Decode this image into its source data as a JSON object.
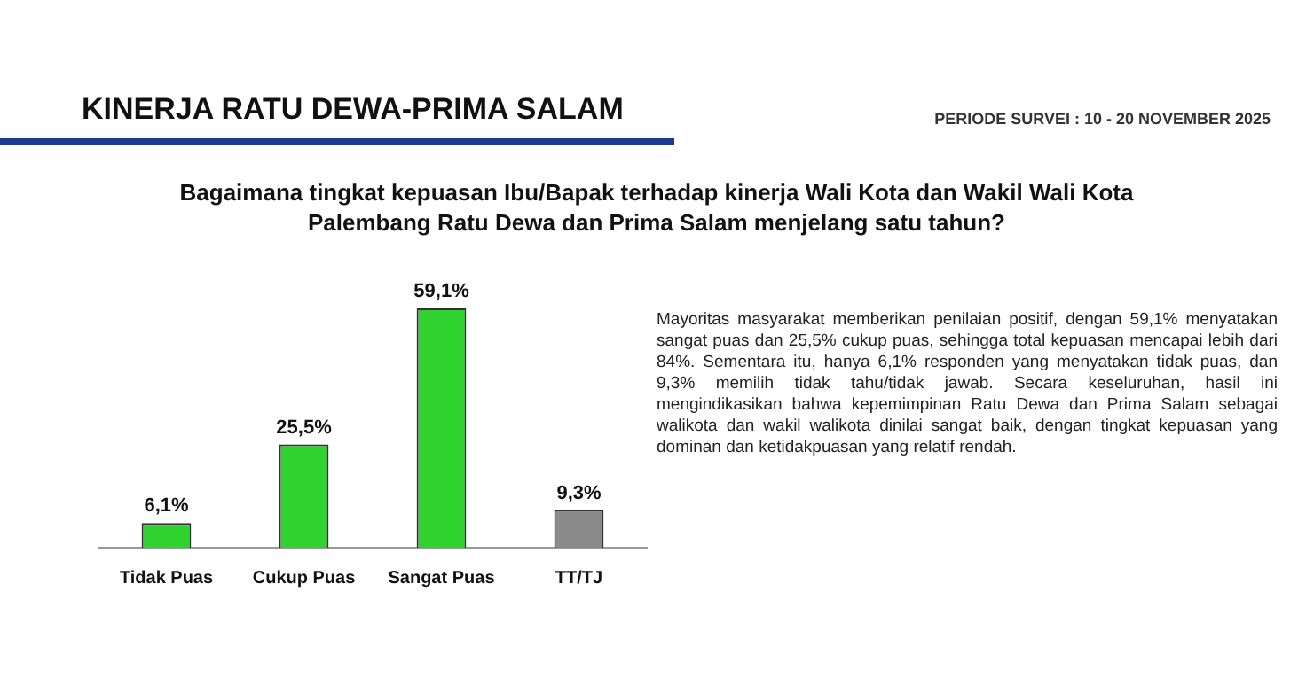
{
  "chart_data": {
    "type": "bar",
    "title": "KINERJA RATU DEWA-PRIMA SALAM",
    "subtitle": "Bagaimana tingkat kepuasan Ibu/Bapak terhadap kinerja Wali Kota dan Wakil Wali Kota Palembang Ratu Dewa dan Prima Salam menjelang satu tahun?",
    "categories": [
      "Tidak Puas",
      "Cukup Puas",
      "Sangat Puas",
      "TT/TJ"
    ],
    "values": [
      6.1,
      25.5,
      59.1,
      9.3
    ],
    "colors": [
      "#2fd22f",
      "#2fd22f",
      "#2fd22f",
      "#8a8a8a"
    ],
    "value_labels": [
      "6,1%",
      "25,5%",
      "59,1%",
      "9,3%"
    ],
    "annotations": [
      "PERIODE SURVEI : 10 - 20 NOVEMBER 2025",
      "Mayoritas masyarakat memberikan penilaian positif, dengan 59,1% menyatakan sangat puas dan 25,5% cukup puas, sehingga total kepuasan mencapai lebih dari 84%. Sementara itu, hanya 6,1% responden yang menyatakan tidak puas, dan 9,3% memilih tidak tahu/tidak jawab. Secara keseluruhan, hasil ini mengindikasikan bahwa kepemimpinan Ratu Dewa dan Prima Salam sebagai walikota dan wakil walikota dinilai sangat baik, dengan tingkat kepuasan yang dominan dan ketidakpuasan yang relatif rendah."
    ]
  }
}
